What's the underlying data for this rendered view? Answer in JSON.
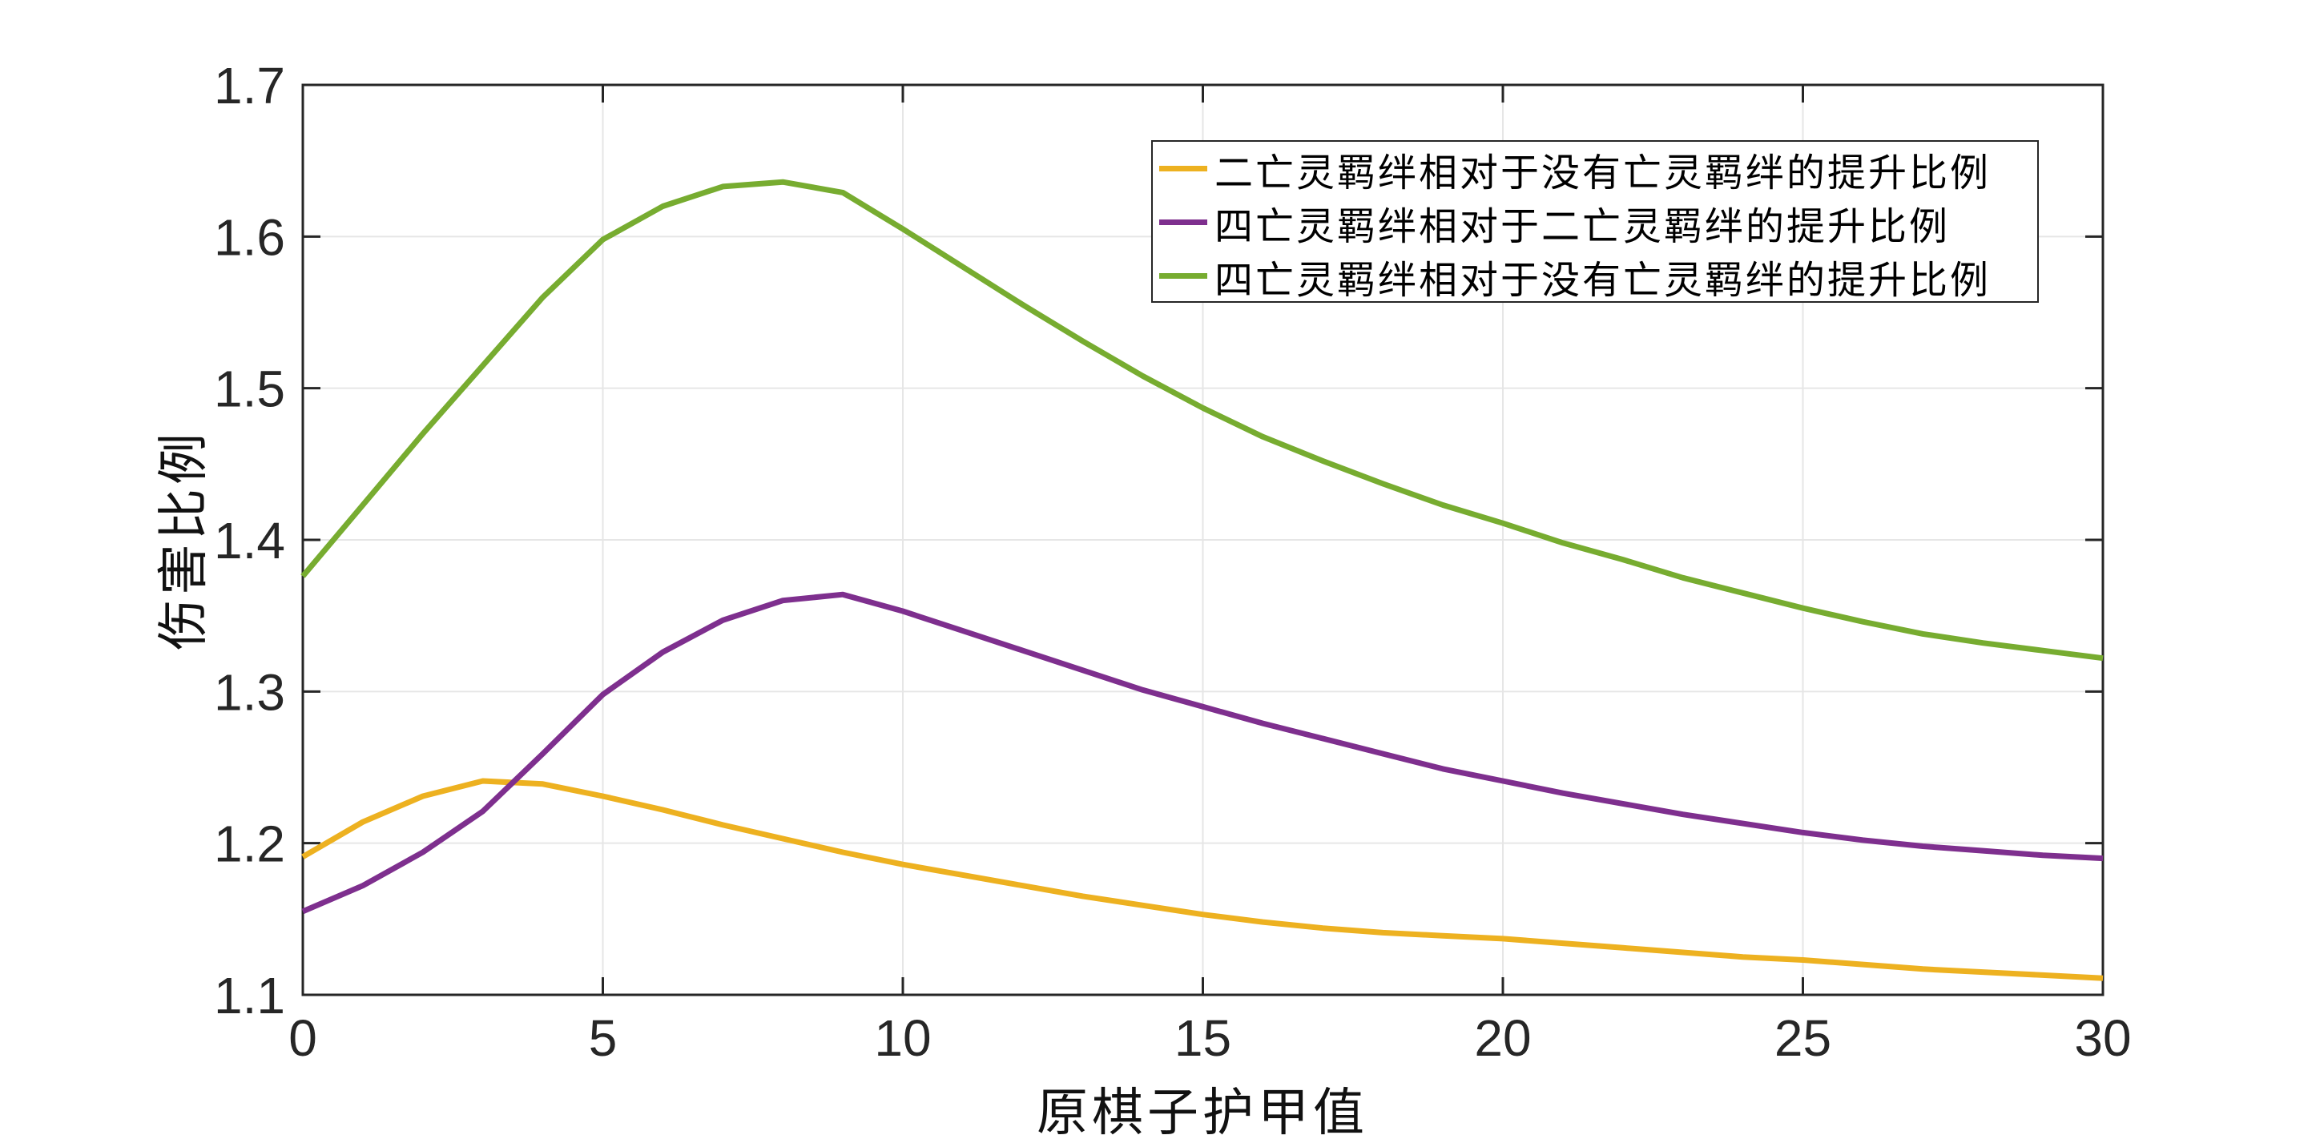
{
  "chart_data": {
    "type": "line",
    "title": "",
    "xlabel": "原棋子护甲值",
    "ylabel": "伤害比例",
    "xlim": [
      0,
      30
    ],
    "ylim": [
      1.1,
      1.7
    ],
    "xticks": [
      "0",
      "5",
      "10",
      "15",
      "20",
      "25",
      "30"
    ],
    "yticks": [
      "1.1",
      "1.2",
      "1.3",
      "1.4",
      "1.5",
      "1.6",
      "1.7"
    ],
    "grid": true,
    "legend_position": "upper right",
    "x": [
      0,
      1,
      2,
      3,
      4,
      5,
      6,
      7,
      8,
      9,
      10,
      11,
      12,
      13,
      14,
      15,
      16,
      17,
      18,
      19,
      20,
      21,
      22,
      23,
      24,
      25,
      26,
      27,
      28,
      29,
      30
    ],
    "series": [
      {
        "name": "二亡灵羁绊相对于没有亡灵羁绊的提升比例",
        "color": "#EDB120",
        "values": [
          1.191,
          1.214,
          1.231,
          1.241,
          1.239,
          1.231,
          1.222,
          1.212,
          1.203,
          1.194,
          1.186,
          1.179,
          1.172,
          1.165,
          1.159,
          1.153,
          1.148,
          1.144,
          1.141,
          1.139,
          1.137,
          1.134,
          1.131,
          1.128,
          1.125,
          1.123,
          1.12,
          1.117,
          1.115,
          1.113,
          1.111
        ]
      },
      {
        "name": "四亡灵羁绊相对于二亡灵羁绊的提升比例",
        "color": "#7E2F8E",
        "values": [
          1.155,
          1.172,
          1.194,
          1.221,
          1.259,
          1.298,
          1.326,
          1.347,
          1.36,
          1.364,
          1.353,
          1.34,
          1.327,
          1.314,
          1.301,
          1.29,
          1.279,
          1.269,
          1.259,
          1.249,
          1.241,
          1.233,
          1.226,
          1.219,
          1.213,
          1.207,
          1.202,
          1.198,
          1.195,
          1.192,
          1.19
        ]
      },
      {
        "name": "四亡灵羁绊相对于没有亡灵羁绊的提升比例",
        "color": "#77AC30",
        "values": [
          1.376,
          1.423,
          1.47,
          1.515,
          1.56,
          1.598,
          1.62,
          1.633,
          1.636,
          1.629,
          1.605,
          1.58,
          1.555,
          1.531,
          1.508,
          1.487,
          1.468,
          1.452,
          1.437,
          1.423,
          1.411,
          1.398,
          1.387,
          1.375,
          1.365,
          1.355,
          1.346,
          1.338,
          1.332,
          1.327,
          1.322
        ]
      }
    ]
  },
  "style": {
    "background": "#ffffff",
    "grid_color": "#e6e6e6",
    "frame_color": "#262626",
    "tick_label_color": "#262626"
  }
}
